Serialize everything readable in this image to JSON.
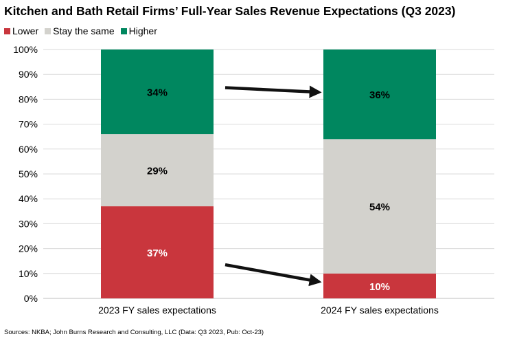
{
  "chart_data": {
    "type": "bar",
    "stacked": true,
    "title": "Kitchen and Bath Retail Firms’ Full-Year Sales Revenue Expectations (Q3 2023)",
    "categories": [
      "2023 FY sales expectations",
      "2024 FY sales expectations"
    ],
    "series": [
      {
        "name": "Lower",
        "color": "#c9363d",
        "values": [
          37,
          10
        ],
        "labels": [
          "37%",
          "10%"
        ]
      },
      {
        "name": "Stay the same",
        "color": "#d3d2cd",
        "values": [
          29,
          54
        ],
        "labels": [
          "29%",
          "54%"
        ]
      },
      {
        "name": "Higher",
        "color": "#00875f",
        "values": [
          34,
          36
        ],
        "labels": [
          "34%",
          "36%"
        ]
      }
    ],
    "y_ticks": [
      "0%",
      "10%",
      "20%",
      "30%",
      "40%",
      "50%",
      "60%",
      "70%",
      "80%",
      "90%",
      "100%"
    ],
    "ylim": [
      0,
      100
    ],
    "grid": true,
    "legend_position": "top-left",
    "annotations": [
      {
        "type": "arrow",
        "from_category": 0,
        "to_category": 1,
        "series": "Higher",
        "direction": "up"
      },
      {
        "type": "arrow",
        "from_category": 0,
        "to_category": 1,
        "series": "Lower",
        "direction": "down"
      }
    ],
    "source": "Sources: NKBA; John Burns Research and Consulting, LLC (Data: Q3 2023, Pub: Oct-23)"
  }
}
